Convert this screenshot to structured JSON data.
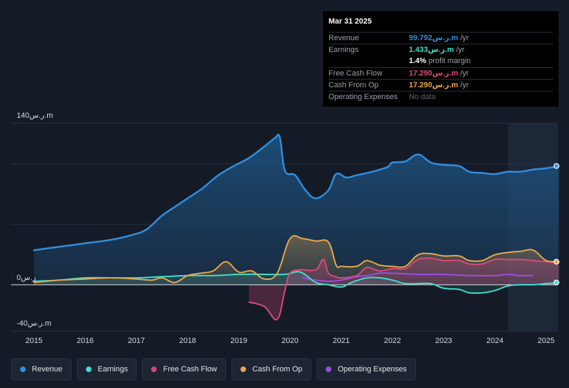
{
  "tooltip": {
    "date": "Mar 31 2025",
    "rows": [
      {
        "label": "Revenue",
        "value": "99.792ر.س.m",
        "suffix": " /yr",
        "color": "#2f8fe0"
      },
      {
        "label": "Earnings",
        "value": "1.433ر.س.m",
        "suffix": " /yr",
        "color": "#3fe0cf"
      },
      {
        "label": "",
        "value": "1.4%",
        "suffix": " profit margin",
        "color": "#ffffff"
      },
      {
        "label": "Free Cash Flow",
        "value": "17.290ر.س.m",
        "suffix": " /yr",
        "color": "#d9497e"
      },
      {
        "label": "Cash From Op",
        "value": "17.290ر.س.m",
        "suffix": " /yr",
        "color": "#e8a84b"
      },
      {
        "label": "Operating Expenses",
        "value": "No data",
        "suffix": "",
        "color": "#5f6570"
      }
    ]
  },
  "legend": [
    {
      "label": "Revenue",
      "color": "#2f8fe0"
    },
    {
      "label": "Earnings",
      "color": "#3fe0cf"
    },
    {
      "label": "Free Cash Flow",
      "color": "#d9497e"
    },
    {
      "label": "Cash From Op",
      "color": "#e8a84b"
    },
    {
      "label": "Operating Expenses",
      "color": "#9b4de8"
    }
  ],
  "chart_data": {
    "type": "area",
    "title": "",
    "xlabel": "",
    "ylabel": "",
    "ylim": [
      -40,
      140
    ],
    "xlim": [
      2014.75,
      2025.25
    ],
    "y_tick_labels": [
      {
        "value": 140,
        "label": "140ر.س.m"
      },
      {
        "value": 0,
        "label": "0ر.س"
      },
      {
        "value": -40,
        "label": "-40ر.س.m"
      }
    ],
    "x_tick_labels": [
      "2015",
      "2016",
      "2017",
      "2018",
      "2019",
      "2020",
      "2021",
      "2022",
      "2023",
      "2024",
      "2025"
    ],
    "x_tick_values": [
      2015,
      2016,
      2017,
      2018,
      2019,
      2020,
      2021,
      2022,
      2023,
      2024,
      2025
    ],
    "forecast_start": 2024.25,
    "series": [
      {
        "name": "Revenue",
        "color": "#2f8fe0",
        "x": [
          2015,
          2015.5,
          2016,
          2016.5,
          2016.9,
          2017.2,
          2017.5,
          2017.8,
          2018.0,
          2018.3,
          2018.6,
          2018.9,
          2019.2,
          2019.5,
          2019.7,
          2019.8,
          2019.9,
          2020.1,
          2020.3,
          2020.5,
          2020.75,
          2020.9,
          2021.1,
          2021.3,
          2021.6,
          2021.9,
          2022.0,
          2022.25,
          2022.5,
          2022.75,
          2023.0,
          2023.3,
          2023.5,
          2023.75,
          2024.0,
          2024.25,
          2024.5,
          2024.75,
          2025.0,
          2025.25
        ],
        "values": [
          30,
          33,
          36,
          39,
          43,
          48,
          60,
          69,
          75,
          84,
          95,
          103,
          110,
          120,
          127,
          128,
          99,
          95,
          82,
          75,
          82,
          96,
          93,
          95,
          98,
          102,
          106,
          107,
          113,
          106,
          104,
          103,
          98,
          97,
          96,
          98,
          98,
          100,
          101,
          103
        ]
      },
      {
        "name": "Earnings",
        "color": "#3fe0cf",
        "x": [
          2015,
          2015.5,
          2016,
          2016.5,
          2017,
          2017.5,
          2018,
          2018.5,
          2019,
          2019.5,
          2019.9,
          2020.2,
          2020.5,
          2020.75,
          2021.0,
          2021.2,
          2021.5,
          2021.75,
          2022.0,
          2022.25,
          2022.5,
          2022.75,
          2023.0,
          2023.3,
          2023.5,
          2023.75,
          2024.0,
          2024.25,
          2024.5,
          2024.75,
          2025.0,
          2025.25
        ],
        "values": [
          3,
          4,
          6,
          6,
          6,
          7,
          8,
          8,
          9,
          9,
          9,
          11,
          2,
          0,
          -2,
          2,
          6,
          6,
          4,
          1,
          1,
          1,
          -3,
          -4,
          -7,
          -7,
          -5,
          -1,
          0,
          0,
          1,
          2
        ]
      },
      {
        "name": "Free Cash Flow",
        "color": "#d9497e",
        "x": [
          2019.2,
          2019.5,
          2019.75,
          2019.9,
          2020.0,
          2020.2,
          2020.5,
          2020.65,
          2020.75,
          2020.9,
          2021.0,
          2021.3,
          2021.5,
          2021.75,
          2022.0,
          2022.25,
          2022.5,
          2022.75,
          2023.0,
          2023.3,
          2023.5,
          2023.75,
          2024.0,
          2024.25,
          2024.5,
          2024.75,
          2025.0,
          2025.25
        ],
        "values": [
          -15,
          -19,
          -30,
          -5,
          10,
          13,
          13,
          22,
          10,
          7,
          6,
          8,
          15,
          12,
          14,
          14,
          22,
          23,
          21,
          21,
          18,
          18,
          22,
          22,
          22,
          21,
          20,
          19
        ]
      },
      {
        "name": "Cash From Op",
        "color": "#e8a84b",
        "x": [
          2015,
          2015.5,
          2016,
          2016.5,
          2017,
          2017.3,
          2017.5,
          2017.75,
          2018.0,
          2018.25,
          2018.5,
          2018.75,
          2019.0,
          2019.25,
          2019.5,
          2019.75,
          2020.0,
          2020.25,
          2020.5,
          2020.75,
          2020.9,
          2021.0,
          2021.3,
          2021.5,
          2021.75,
          2022.0,
          2022.25,
          2022.5,
          2022.75,
          2023.0,
          2023.3,
          2023.5,
          2023.75,
          2024.0,
          2024.25,
          2024.5,
          2024.75,
          2025.0,
          2025.25
        ],
        "values": [
          2,
          4,
          5,
          6,
          5,
          4,
          6,
          2,
          8,
          10,
          12,
          20,
          11,
          12,
          5,
          10,
          40,
          40,
          38,
          37,
          17,
          16,
          16,
          21,
          17,
          16,
          16,
          26,
          27,
          25,
          25,
          21,
          21,
          26,
          28,
          29,
          30,
          21,
          20
        ]
      },
      {
        "name": "Operating Expenses",
        "color": "#9b4de8",
        "x": [
          2020.25,
          2020.5,
          2020.75,
          2021.0,
          2021.3,
          2021.5,
          2021.75,
          2022.0,
          2022.5,
          2023.0,
          2023.5,
          2024.0,
          2024.25,
          2024.5,
          2024.75
        ],
        "values": [
          6,
          4,
          3,
          4,
          7,
          8,
          10,
          10,
          9,
          9,
          8,
          8,
          9,
          8,
          8
        ]
      }
    ]
  }
}
